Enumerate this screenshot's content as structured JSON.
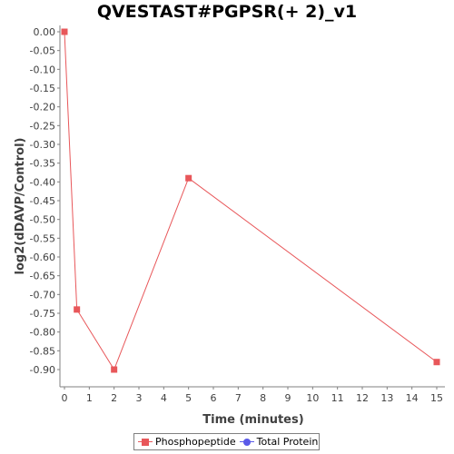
{
  "chart_data": {
    "type": "line",
    "title": "QVESTAST#PGPSR(+ 2)_v1",
    "xlabel": "Time (minutes)",
    "ylabel": "log2(dDAVP/Control)",
    "x_ticks": [
      "0",
      "1",
      "2",
      "3",
      "4",
      "5",
      "6",
      "7",
      "8",
      "9",
      "10",
      "11",
      "12",
      "13",
      "14",
      "15"
    ],
    "xlim": [
      0,
      15.6
    ],
    "y_ticks": [
      "0.00",
      "-0.05",
      "-0.10",
      "-0.15",
      "-0.20",
      "-0.25",
      "-0.30",
      "-0.35",
      "-0.40",
      "-0.45",
      "-0.50",
      "-0.55",
      "-0.60",
      "-0.65",
      "-0.70",
      "-0.75",
      "-0.80",
      "-0.85",
      "-0.90"
    ],
    "ylim": [
      -0.94,
      0.0
    ],
    "grid": false,
    "legend_position": "bottom",
    "series": [
      {
        "name": "Phosphopeptide",
        "color": "#e8575a",
        "marker": "square",
        "x": [
          0,
          0.5,
          2,
          5,
          15
        ],
        "y": [
          0.0,
          -0.74,
          -0.9,
          -0.39,
          -0.88
        ]
      },
      {
        "name": "Total Protein",
        "color": "#5a5ae8",
        "marker": "circle",
        "x": [],
        "y": []
      }
    ]
  }
}
